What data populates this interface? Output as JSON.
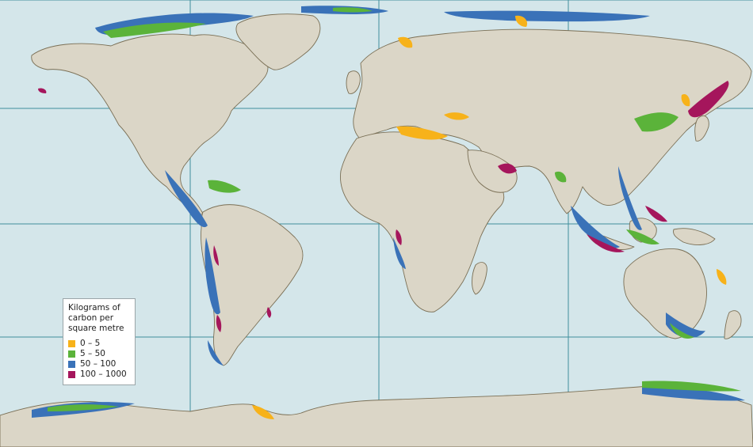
{
  "legend": {
    "title_lines": [
      "Kilograms of",
      "carbon per",
      "square metre"
    ],
    "items": [
      {
        "label": "0 – 5",
        "color": "#f7b21a"
      },
      {
        "label": "5 – 50",
        "color": "#5bb33a"
      },
      {
        "label": "50 – 100",
        "color": "#3a72b8"
      },
      {
        "label": "100 – 1000",
        "color": "#a5165c"
      }
    ]
  },
  "colors": {
    "ocean": "#d4e6ea",
    "land": "#dbd6c7",
    "coast": "#7a6f55",
    "grid": "#3f8f9c"
  }
}
